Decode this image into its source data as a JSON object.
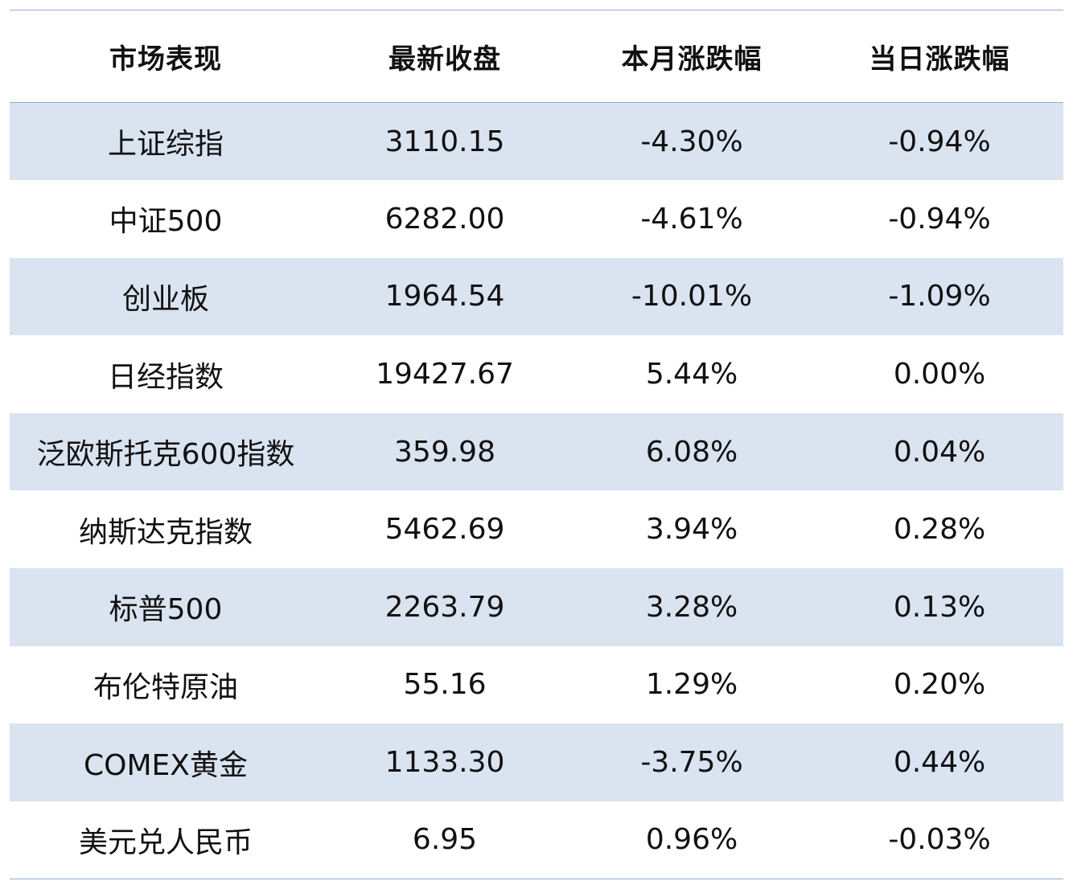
{
  "table": {
    "headers": [
      "市场表现",
      "最新收盘",
      "本月涨跌幅",
      "当日涨跌幅"
    ],
    "rows": [
      [
        "上证综指",
        "3110.15",
        "-4.30%",
        "-0.94%"
      ],
      [
        "中证500",
        "6282.00",
        "-4.61%",
        "-0.94%"
      ],
      [
        "创业板",
        "1964.54",
        "-10.01%",
        "-1.09%"
      ],
      [
        "日经指数",
        "19427.67",
        "5.44%",
        "0.00%"
      ],
      [
        "泛欧斯托克600指数",
        "359.98",
        "6.08%",
        "0.04%"
      ],
      [
        "纳斯达克指数",
        "5462.69",
        "3.94%",
        "0.28%"
      ],
      [
        "标普500",
        "2263.79",
        "3.28%",
        "0.13%"
      ],
      [
        "布伦特原油",
        "55.16",
        "1.29%",
        "0.20%"
      ],
      [
        "COMEX黄金",
        "1133.30",
        "-3.75%",
        "0.44%"
      ],
      [
        "美元兑人民币",
        "6.95",
        "0.96%",
        "-0.03%"
      ]
    ]
  },
  "colors": {
    "stripe": "#dae3f0",
    "rule": "#8eaadb"
  }
}
